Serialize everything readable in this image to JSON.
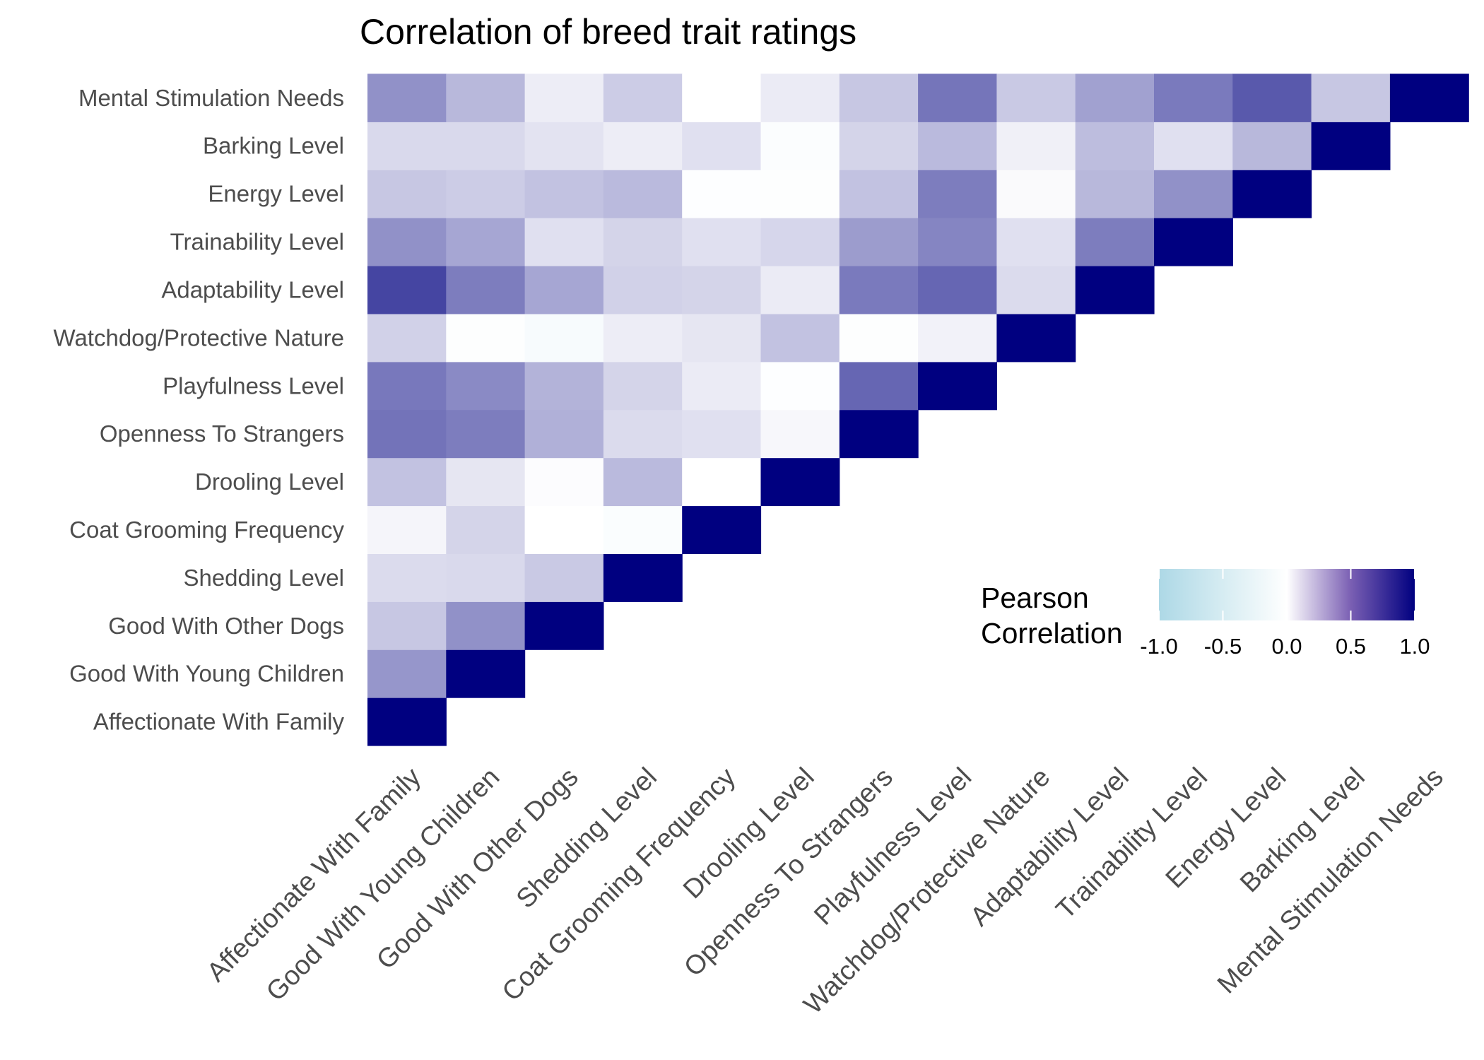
{
  "chart_data": {
    "type": "heatmap",
    "title": "Correlation of breed trait ratings",
    "variables": [
      "Affectionate With Family",
      "Good With Young Children",
      "Good With Other Dogs",
      "Shedding Level",
      "Coat Grooming Frequency",
      "Drooling Level",
      "Openness To Strangers",
      "Playfulness Level",
      "Watchdog/Protective Nature",
      "Adaptability Level",
      "Trainability Level",
      "Energy Level",
      "Barking Level",
      "Mental Stimulation Needs"
    ],
    "matrix": [
      [
        1.0,
        null,
        null,
        null,
        null,
        null,
        null,
        null,
        null,
        null,
        null,
        null,
        null,
        null
      ],
      [
        0.41,
        1.0,
        null,
        null,
        null,
        null,
        null,
        null,
        null,
        null,
        null,
        null,
        null,
        null
      ],
      [
        0.22,
        0.43,
        1.0,
        null,
        null,
        null,
        null,
        null,
        null,
        null,
        null,
        null,
        null,
        null
      ],
      [
        0.14,
        0.15,
        0.21,
        1.0,
        null,
        null,
        null,
        null,
        null,
        null,
        null,
        null,
        null,
        null
      ],
      [
        0.04,
        0.17,
        0.0,
        -0.06,
        1.0,
        null,
        null,
        null,
        null,
        null,
        null,
        null,
        null,
        null
      ],
      [
        0.24,
        0.1,
        0.01,
        0.27,
        0.0,
        1.0,
        null,
        null,
        null,
        null,
        null,
        null,
        null,
        null
      ],
      [
        0.55,
        0.51,
        0.31,
        0.14,
        0.12,
        0.03,
        1.0,
        null,
        null,
        null,
        null,
        null,
        null,
        null
      ],
      [
        0.53,
        0.46,
        0.3,
        0.17,
        0.08,
        -0.02,
        0.6,
        1.0,
        null,
        null,
        null,
        null,
        null,
        null
      ],
      [
        0.18,
        -0.03,
        -0.1,
        0.07,
        0.1,
        0.24,
        -0.03,
        0.05,
        1.0,
        null,
        null,
        null,
        null,
        null
      ],
      [
        0.73,
        0.51,
        0.35,
        0.18,
        0.17,
        0.08,
        0.52,
        0.6,
        0.14,
        1.0,
        null,
        null,
        null,
        null
      ],
      [
        0.43,
        0.35,
        0.12,
        0.17,
        0.12,
        0.16,
        0.39,
        0.48,
        0.12,
        0.51,
        1.0,
        null,
        null,
        null
      ],
      [
        0.22,
        0.2,
        0.24,
        0.27,
        -0.02,
        -0.03,
        0.24,
        0.51,
        0.02,
        0.28,
        0.43,
        1.0,
        null,
        null
      ],
      [
        0.15,
        0.15,
        0.11,
        0.07,
        0.12,
        -0.05,
        0.17,
        0.27,
        0.06,
        0.26,
        0.12,
        0.28,
        1.0,
        null
      ],
      [
        0.43,
        0.28,
        0.07,
        0.2,
        0.0,
        0.08,
        0.22,
        0.54,
        0.21,
        0.37,
        0.52,
        0.65,
        0.22,
        1.0
      ]
    ],
    "color_scale": {
      "low": "#add8e6",
      "mid": "#ffffff",
      "high": "#000080",
      "limits": [
        -1,
        1
      ]
    },
    "legend": {
      "title_line1": "Pearson",
      "title_line2": "Correlation",
      "ticks": [
        -1.0,
        -0.5,
        0.0,
        0.5,
        1.0
      ],
      "tick_labels": [
        "-1.0",
        "-0.5",
        "0.0",
        "0.5",
        "1.0"
      ],
      "placement": "bottom-right inside, horizontal"
    },
    "grid": false
  }
}
